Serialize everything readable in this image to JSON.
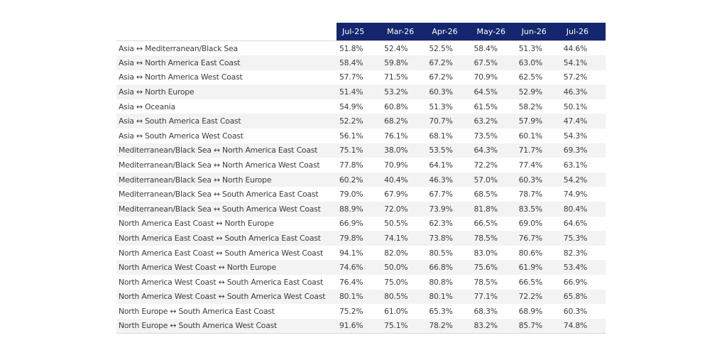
{
  "chart_data": {
    "type": "table",
    "columns": [
      "Jul-25",
      "Mar-26",
      "Apr-26",
      "May-26",
      "Jun-26",
      "Jul-26"
    ],
    "rows": [
      {
        "route": "Asia ↔ Mediterranean/Black Sea",
        "values": [
          "51.8%",
          "52.4%",
          "52.5%",
          "58.4%",
          "51.3%",
          "44.6%"
        ]
      },
      {
        "route": "Asia ↔ North America East Coast",
        "values": [
          "58.4%",
          "59.8%",
          "67.2%",
          "67.5%",
          "63.0%",
          "54.1%"
        ]
      },
      {
        "route": "Asia ↔ North America West Coast",
        "values": [
          "57.7%",
          "71.5%",
          "67.2%",
          "70.9%",
          "62.5%",
          "57.2%"
        ]
      },
      {
        "route": "Asia ↔ North Europe",
        "values": [
          "51.4%",
          "53.2%",
          "60.3%",
          "64.5%",
          "52.9%",
          "46.3%"
        ]
      },
      {
        "route": "Asia ↔ Oceania",
        "values": [
          "54.9%",
          "60.8%",
          "51.3%",
          "61.5%",
          "58.2%",
          "50.1%"
        ]
      },
      {
        "route": "Asia ↔ South America East Coast",
        "values": [
          "52.2%",
          "68.2%",
          "70.7%",
          "63.2%",
          "57.9%",
          "47.4%"
        ]
      },
      {
        "route": "Asia ↔ South America West Coast",
        "values": [
          "56.1%",
          "76.1%",
          "68.1%",
          "73.5%",
          "60.1%",
          "54.3%"
        ]
      },
      {
        "route": "Mediterranean/Black Sea ↔ North America East Coast",
        "values": [
          "75.1%",
          "38.0%",
          "53.5%",
          "64.3%",
          "71.7%",
          "69.3%"
        ]
      },
      {
        "route": "Mediterranean/Black Sea ↔ North America West Coast",
        "values": [
          "77.8%",
          "70.9%",
          "64.1%",
          "72.2%",
          "77.4%",
          "63.1%"
        ]
      },
      {
        "route": "Mediterranean/Black Sea ↔ North Europe",
        "values": [
          "60.2%",
          "40.4%",
          "46.3%",
          "57.0%",
          "60.3%",
          "54.2%"
        ]
      },
      {
        "route": "Mediterranean/Black Sea ↔ South America East Coast",
        "values": [
          "79.0%",
          "67.9%",
          "67.7%",
          "68.5%",
          "78.7%",
          "74.9%"
        ]
      },
      {
        "route": "Mediterranean/Black Sea ↔ South America West Coast",
        "values": [
          "88.9%",
          "72.0%",
          "73.9%",
          "81.8%",
          "83.5%",
          "80.4%"
        ]
      },
      {
        "route": "North America East Coast ↔ North Europe",
        "values": [
          "66.9%",
          "50.5%",
          "62.3%",
          "66.5%",
          "69.0%",
          "64.6%"
        ]
      },
      {
        "route": "North America East Coast ↔ South America East Coast",
        "values": [
          "79.8%",
          "74.1%",
          "73.8%",
          "78.5%",
          "76.7%",
          "75.3%"
        ]
      },
      {
        "route": "North America East Coast ↔ South America West Coast",
        "values": [
          "94.1%",
          "82.0%",
          "80.5%",
          "83.0%",
          "80.6%",
          "82.3%"
        ]
      },
      {
        "route": "North America West Coast ↔ North Europe",
        "values": [
          "74.6%",
          "50.0%",
          "66.8%",
          "75.6%",
          "61.9%",
          "53.4%"
        ]
      },
      {
        "route": "North America West Coast ↔ South America East Coast",
        "values": [
          "76.4%",
          "75.0%",
          "80.8%",
          "78.5%",
          "66.5%",
          "66.9%"
        ]
      },
      {
        "route": "North America West Coast ↔ South America West Coast",
        "values": [
          "80.1%",
          "80.5%",
          "80.1%",
          "77.1%",
          "72.2%",
          "65.8%"
        ]
      },
      {
        "route": "North Europe ↔ South America East Coast",
        "values": [
          "75.2%",
          "61.0%",
          "65.3%",
          "68.3%",
          "68.9%",
          "60.3%"
        ]
      },
      {
        "route": "North Europe ↔ South America West Coast",
        "values": [
          "91.6%",
          "75.1%",
          "78.2%",
          "83.2%",
          "85.7%",
          "74.8%"
        ]
      }
    ]
  },
  "colors": {
    "header_background": "#15266e",
    "header_text": "#ffffff",
    "stripe_background": "#f3f3f3",
    "body_text": "#3c3c3c"
  }
}
